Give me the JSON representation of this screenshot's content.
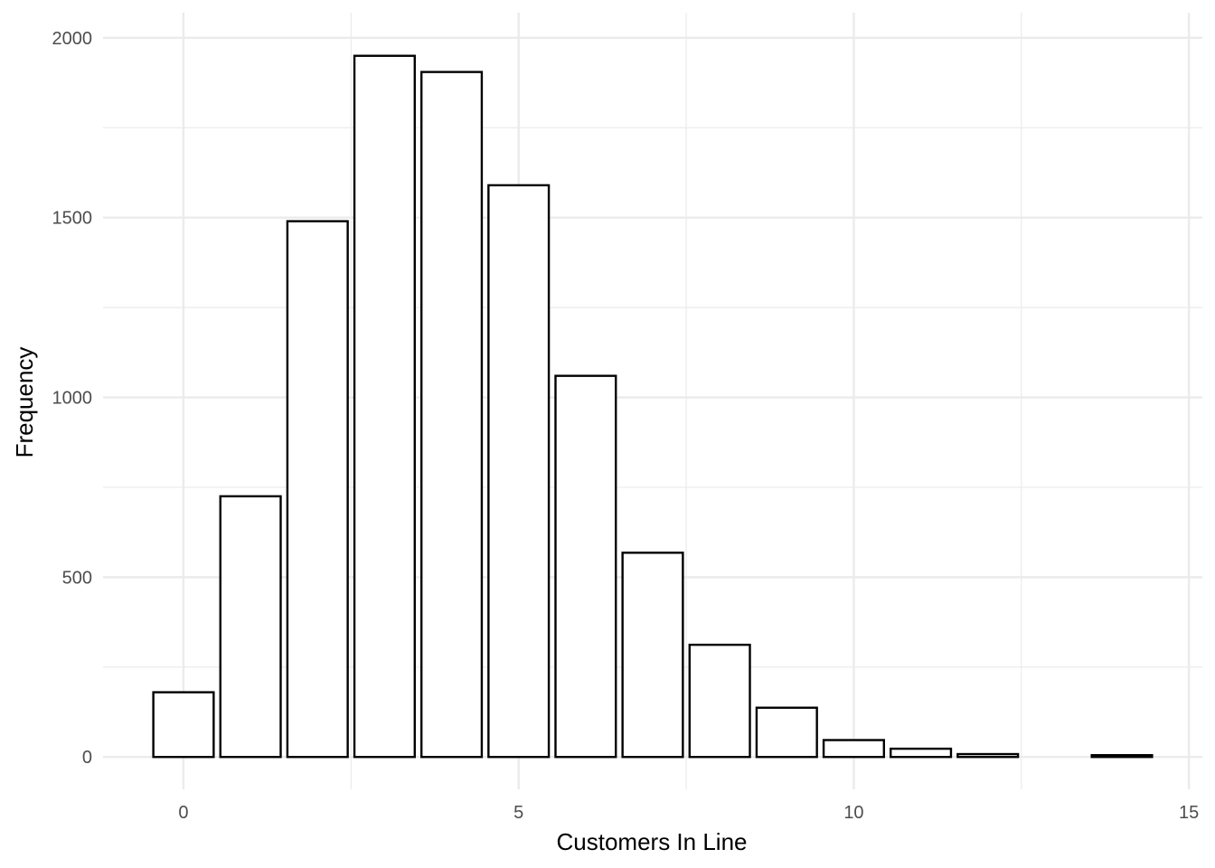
{
  "chart_data": {
    "type": "bar",
    "title": "",
    "xlabel": "Customers In Line",
    "ylabel": "Frequency",
    "x": [
      0,
      1,
      2,
      3,
      4,
      5,
      6,
      7,
      8,
      9,
      10,
      11,
      12,
      13,
      14
    ],
    "values": [
      180,
      725,
      1490,
      1950,
      1905,
      1590,
      1060,
      568,
      312,
      137,
      47,
      23,
      8,
      0,
      5
    ],
    "xlim": [
      -1.2,
      15.2
    ],
    "ylim": [
      -90,
      2070
    ],
    "xticks": [
      0,
      5,
      10,
      15
    ],
    "yticks": [
      0,
      500,
      1000,
      1500,
      2000
    ],
    "xtick_labels": [
      "0",
      "5",
      "10",
      "15"
    ],
    "ytick_labels": [
      "0",
      "500",
      "1000",
      "1500",
      "2000"
    ],
    "grid": true,
    "bar_fill": "#ffffff",
    "bar_stroke": "#000000",
    "grid_color": "#ebebeb"
  }
}
